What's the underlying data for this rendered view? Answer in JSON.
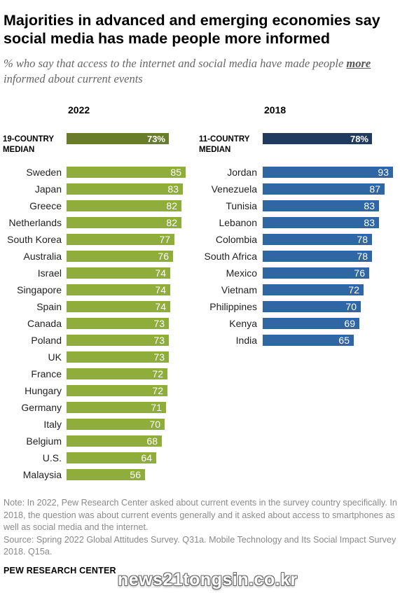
{
  "title": "Majorities in advanced and emerging economies say social media has made people more informed",
  "subtitle": {
    "part1": "% who say that access to the internet and social media have made people ",
    "emphasis": "more",
    "part2": " informed about current events"
  },
  "colors": {
    "green": "#8fad3b",
    "green_dark": "#687d2c",
    "blue": "#2f66a3",
    "blue_dark": "#213a60"
  },
  "chart_data": [
    {
      "type": "bar",
      "panel_title": "2022",
      "median_label": [
        "19-COUNTRY",
        "MEDIAN"
      ],
      "median_value": 73,
      "median_display": "73%",
      "categories": [
        "Sweden",
        "Japan",
        "Greece",
        "Netherlands",
        "South Korea",
        "Australia",
        "Israel",
        "Singapore",
        "Spain",
        "Canada",
        "Poland",
        "UK",
        "France",
        "Hungary",
        "Germany",
        "Italy",
        "Belgium",
        "U.S.",
        "Malaysia"
      ],
      "values": [
        85,
        83,
        82,
        82,
        77,
        76,
        74,
        74,
        74,
        73,
        73,
        73,
        72,
        72,
        71,
        70,
        68,
        64,
        56
      ],
      "xlim": [
        0,
        100
      ]
    },
    {
      "type": "bar",
      "panel_title": "2018",
      "median_label": [
        "11-COUNTRY",
        "MEDIAN"
      ],
      "median_value": 78,
      "median_display": "78%",
      "categories": [
        "Jordan",
        "Venezuela",
        "Tunisia",
        "Lebanon",
        "Colombia",
        "South Africa",
        "Mexico",
        "Vietnam",
        "Philippines",
        "Kenya",
        "India"
      ],
      "values": [
        93,
        87,
        83,
        83,
        78,
        78,
        76,
        72,
        70,
        69,
        65
      ],
      "xlim": [
        0,
        100
      ]
    }
  ],
  "notes": {
    "note": "Note: In 2022, Pew Research Center asked about current events in the survey country specifically. In 2018, the question was about current events generally and it asked about access to smartphones as well as social media and the internet.",
    "source": "Source: Spring 2022 Global Attitudes Survey. Q31a. Mobile Technology and Its Social Impact Survey 2018. Q15a."
  },
  "brand": "PEW RESEARCH CENTER",
  "watermark": "news21tongsin.co.kr"
}
